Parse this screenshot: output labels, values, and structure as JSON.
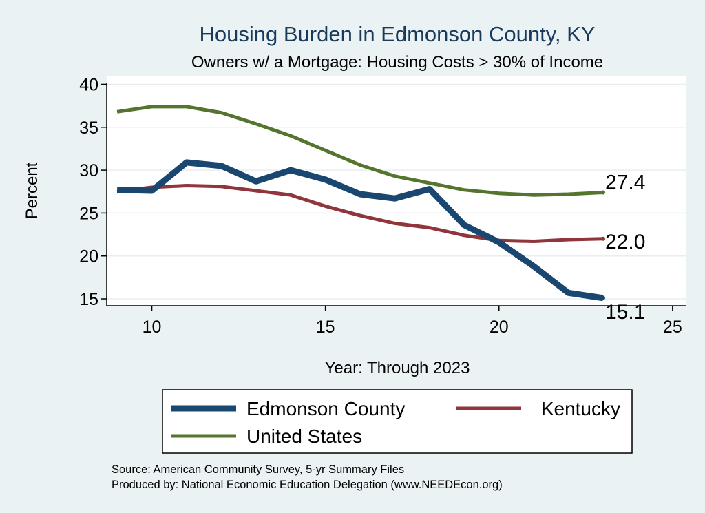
{
  "chart_data": {
    "type": "line",
    "title": "Housing Burden in Edmonson County, KY",
    "subtitle": "Owners w/ a Mortgage: Housing Costs > 30% of Income",
    "xlabel": "Year: Through 2023",
    "ylabel": "Percent",
    "xlim": [
      8.7,
      25.4
    ],
    "ylim": [
      14.2,
      41.0
    ],
    "x_ticks": [
      10,
      15,
      20,
      25
    ],
    "y_ticks": [
      15,
      20,
      25,
      30,
      35,
      40
    ],
    "grid": true,
    "legend_position": "bottom",
    "x": [
      9,
      10,
      11,
      12,
      13,
      14,
      15,
      16,
      17,
      18,
      19,
      20,
      21,
      22,
      23
    ],
    "series": [
      {
        "name": "Edmonson County",
        "color": "#1a476f",
        "values": [
          27.7,
          27.6,
          30.9,
          30.5,
          28.7,
          30.0,
          28.9,
          27.2,
          26.7,
          27.8,
          23.6,
          21.6,
          18.8,
          15.7,
          15.1
        ],
        "end_label": "15.1"
      },
      {
        "name": "Kentucky",
        "color": "#90353b",
        "values": [
          27.5,
          28.0,
          28.2,
          28.1,
          27.6,
          27.1,
          25.8,
          24.7,
          23.8,
          23.3,
          22.4,
          21.8,
          21.7,
          21.9,
          22.0
        ],
        "end_label": "22.0"
      },
      {
        "name": "United States",
        "color": "#55752f",
        "values": [
          36.8,
          37.4,
          37.4,
          36.7,
          35.4,
          34.0,
          32.3,
          30.6,
          29.3,
          28.5,
          27.7,
          27.3,
          27.1,
          27.2,
          27.4
        ],
        "end_label": "27.4"
      }
    ]
  },
  "source_lines": [
    "Source: American Community Survey, 5-yr Summary Files",
    "Produced by: National Economic Education Delegation (www.NEEDEcon.org)"
  ]
}
